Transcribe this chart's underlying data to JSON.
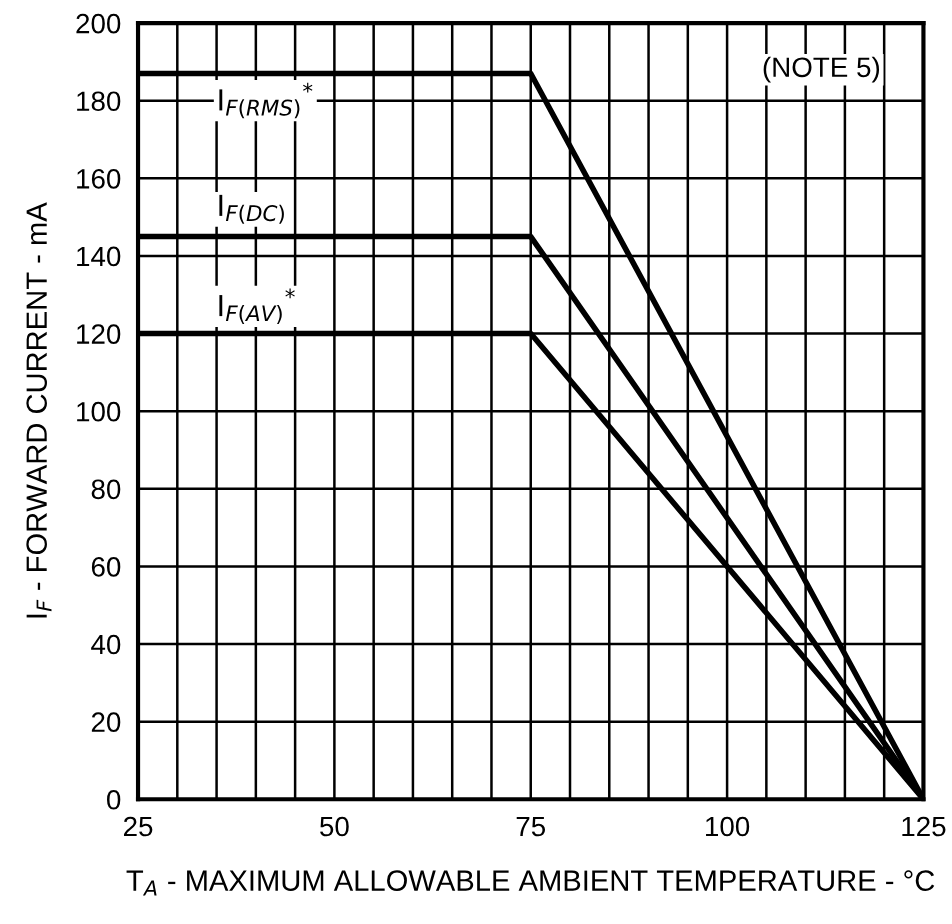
{
  "chart_data": {
    "type": "line",
    "xlabel": "T$_{A}$ - MAXIMUM ALLOWABLE AMBIENT TEMPERATURE - °C",
    "ylabel": "I$_{F}$ - FORWARD CURRENT - mA",
    "x": [
      25,
      75,
      125
    ],
    "series": [
      {
        "name": "I$_{F(RMS)}$$^{*}$",
        "color": "#000000",
        "values": [
          187,
          187,
          0
        ]
      },
      {
        "name": "I$_{F(DC)}$",
        "color": "#000000",
        "values": [
          145,
          145,
          0
        ]
      },
      {
        "name": "I$_{F(AV)}$$^{*}$",
        "color": "#000000",
        "values": [
          120,
          120,
          0
        ]
      }
    ],
    "annotations": [
      "(NOTE 5)"
    ],
    "xlim": [
      25,
      125
    ],
    "ylim": [
      0,
      200
    ],
    "xticks": [
      25,
      50,
      75,
      100,
      125
    ],
    "yticks": [
      0,
      20,
      40,
      60,
      80,
      100,
      120,
      140,
      160,
      180,
      200
    ],
    "grid": true,
    "legend": false,
    "marker": "none",
    "line_style": "solid"
  }
}
